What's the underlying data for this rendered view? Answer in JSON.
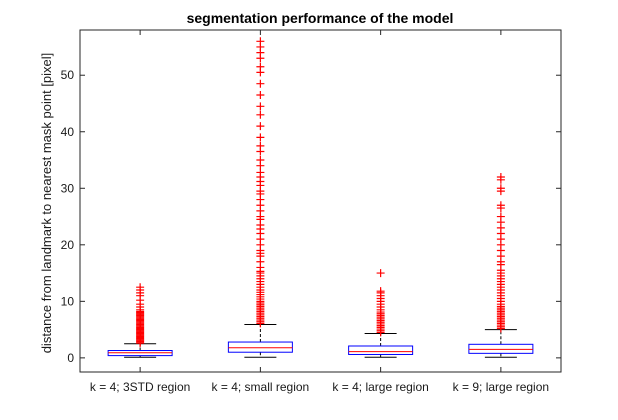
{
  "chart_data": {
    "type": "box",
    "title": "segmentation performance of the model",
    "xlabel": "",
    "ylabel": "distance from landmark to nearest mask point [pixel]",
    "ylim": [
      -2.5,
      58
    ],
    "yticks": [
      0,
      10,
      20,
      30,
      40,
      50
    ],
    "grid": false,
    "legend": "none",
    "categories": [
      "k = 4; 3STD region",
      "k = 4; small region",
      "k = 4; large region",
      "k = 9; large region"
    ],
    "series": [
      {
        "values": [
          {
            "whisker_low": 0.1,
            "q1": 0.4,
            "median": 0.9,
            "q3": 1.3,
            "whisker_high": 2.5,
            "outliers": [
              2.6,
              2.8,
              3.0,
              3.2,
              3.4,
              3.6,
              3.8,
              4.0,
              4.2,
              4.4,
              4.6,
              4.8,
              5.0,
              5.2,
              5.4,
              5.6,
              5.8,
              6.0,
              6.2,
              6.4,
              6.6,
              6.8,
              7.0,
              7.2,
              7.4,
              7.6,
              7.8,
              8.0,
              8.2,
              8.5,
              9.0,
              9.5,
              10.2,
              11.0,
              11.5,
              12.0,
              12.5
            ]
          },
          {
            "whisker_low": 0.1,
            "q1": 1.0,
            "median": 1.8,
            "q3": 2.8,
            "whisker_high": 5.9,
            "outliers": [
              6.1,
              6.4,
              6.7,
              7.0,
              7.3,
              7.6,
              7.9,
              8.2,
              8.5,
              8.8,
              9.1,
              9.4,
              9.7,
              10.0,
              10.4,
              10.8,
              11.2,
              11.6,
              12.0,
              12.5,
              13.0,
              13.5,
              14.0,
              14.5,
              15.0,
              15.3,
              16.0,
              17.0,
              18.0,
              18.5,
              19.0,
              20.0,
              21.0,
              22.0,
              22.8,
              23.5,
              24.5,
              25.0,
              26.0,
              27.0,
              28.0,
              29.0,
              29.5,
              30.5,
              31.2,
              32.0,
              32.8,
              34.0,
              35.0,
              36.5,
              37.5,
              39.0,
              41.0,
              43.0,
              44.5,
              46.5,
              48.5,
              50.5,
              51.5,
              53.0,
              54.0,
              55.0,
              56.0
            ]
          },
          {
            "whisker_low": 0.1,
            "q1": 0.6,
            "median": 1.1,
            "q3": 2.1,
            "whisker_high": 4.3,
            "outliers": [
              4.5,
              4.8,
              5.1,
              5.4,
              5.7,
              6.0,
              6.3,
              6.6,
              6.9,
              7.2,
              7.5,
              7.8,
              8.1,
              8.5,
              9.0,
              9.5,
              10.0,
              10.5,
              11.0,
              11.5,
              11.8,
              15.0
            ]
          },
          {
            "whisker_low": 0.1,
            "q1": 0.8,
            "median": 1.5,
            "q3": 2.4,
            "whisker_high": 5.0,
            "outliers": [
              5.2,
              5.5,
              5.8,
              6.1,
              6.4,
              6.7,
              7.0,
              7.3,
              7.6,
              7.9,
              8.2,
              8.5,
              8.8,
              9.1,
              9.5,
              10.0,
              10.5,
              11.0,
              11.5,
              12.0,
              12.5,
              13.0,
              13.5,
              14.0,
              14.5,
              15.0,
              15.5,
              16.5,
              17.0,
              18.0,
              19.0,
              20.0,
              21.0,
              22.0,
              23.0,
              24.0,
              25.0,
              26.5,
              27.0,
              29.5,
              30.0,
              31.5,
              32.0
            ]
          }
        ]
      }
    ],
    "colors": {
      "box": "#0000ff",
      "median": "#ff0000",
      "outlier": "#ff0000",
      "whisker": "#000000",
      "axes": "#262626"
    }
  }
}
